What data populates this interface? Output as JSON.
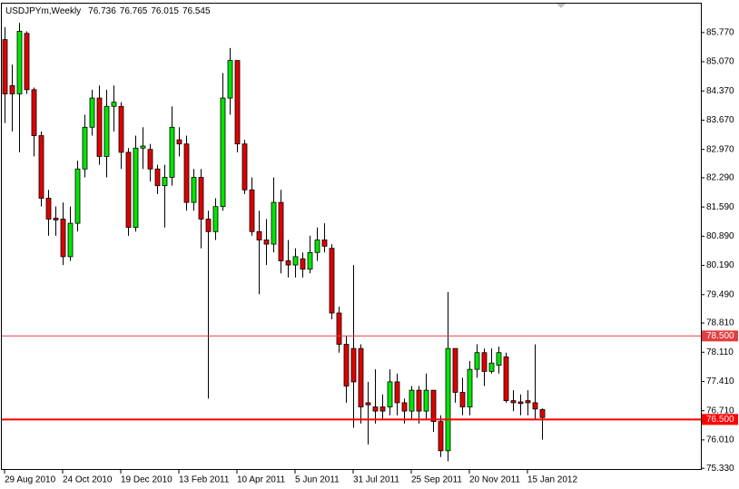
{
  "chart_data": {
    "type": "candlestick",
    "title": "USDJPYm,Weekly",
    "categories": [
      "29 Aug 2010",
      null,
      null,
      null,
      null,
      null,
      null,
      null,
      "24 Oct 2010",
      null,
      null,
      null,
      null,
      null,
      null,
      null,
      "19 Dec 2010",
      null,
      null,
      null,
      null,
      null,
      null,
      null,
      "13 Feb 2011",
      null,
      null,
      null,
      null,
      null,
      null,
      null,
      "10 Apr 2011",
      null,
      null,
      null,
      null,
      null,
      null,
      null,
      "5 Jun 2011",
      null,
      null,
      null,
      null,
      null,
      null,
      null,
      "31 Jul 2011",
      null,
      null,
      null,
      null,
      null,
      null,
      null,
      "25 Sep 2011",
      null,
      null,
      null,
      null,
      null,
      null,
      null,
      "20 Nov 2011",
      null,
      null,
      null,
      null,
      null,
      null,
      null,
      "15 Jan 2012",
      null,
      null
    ],
    "open": [
      85.6,
      84.5,
      84.3,
      85.75,
      84.4,
      83.3,
      81.8,
      81.32,
      81.3,
      80.4,
      81.2,
      82.5,
      83.5,
      84.2,
      82.8,
      84.0,
      84.0,
      82.9,
      81.1,
      83.0,
      82.97,
      82.5,
      82.1,
      82.3,
      83.2,
      83.1,
      81.7,
      82.3,
      81.3,
      81.0,
      81.6,
      84.2,
      85.1,
      83.1,
      82.0,
      81.0,
      80.8,
      80.7,
      81.7,
      80.3,
      80.2,
      80.35,
      80.1,
      80.5,
      80.8,
      80.6,
      79.05,
      78.3,
      78.2,
      78.2,
      76.9,
      76.8,
      76.8,
      76.8,
      77.4,
      76.9,
      76.7,
      77.2,
      76.7,
      77.2,
      76.45,
      75.75,
      78.2,
      77.15,
      76.8,
      77.7,
      78.1,
      77.65,
      77.8,
      78.0,
      76.95,
      76.92,
      76.95,
      76.9,
      76.736
    ],
    "high": [
      85.9,
      85.0,
      86.0,
      85.8,
      84.45,
      83.4,
      82.0,
      81.6,
      81.7,
      81.6,
      82.7,
      83.8,
      84.4,
      84.5,
      84.4,
      84.5,
      84.1,
      83.0,
      83.3,
      83.5,
      83.1,
      82.6,
      82.6,
      84.0,
      83.5,
      83.3,
      82.5,
      82.5,
      81.5,
      81.8,
      84.8,
      85.4,
      85.1,
      83.2,
      82.3,
      81.5,
      81.3,
      82.3,
      82.0,
      80.8,
      80.6,
      80.5,
      80.9,
      81.1,
      81.2,
      80.7,
      79.2,
      78.5,
      80.2,
      78.3,
      77.4,
      77.7,
      77.1,
      77.7,
      77.6,
      77.0,
      77.3,
      77.3,
      77.6,
      77.2,
      76.6,
      79.55,
      78.2,
      77.5,
      77.9,
      78.3,
      78.2,
      78.2,
      78.25,
      78.1,
      77.2,
      77.1,
      77.2,
      78.3,
      76.765
    ],
    "low": [
      83.6,
      83.4,
      82.9,
      84.3,
      82.8,
      81.6,
      80.9,
      80.9,
      80.2,
      80.3,
      81.0,
      82.3,
      83.3,
      82.6,
      82.3,
      83.4,
      82.5,
      80.9,
      81.0,
      82.5,
      82.2,
      81.9,
      81.1,
      82.1,
      82.8,
      81.5,
      81.5,
      80.6,
      77.0,
      80.8,
      81.5,
      83.8,
      82.9,
      81.9,
      80.9,
      79.5,
      80.2,
      80.5,
      80.0,
      79.9,
      79.9,
      79.9,
      80.0,
      80.3,
      80.5,
      78.9,
      78.1,
      76.9,
      76.3,
      76.4,
      75.9,
      76.4,
      76.5,
      76.6,
      76.6,
      76.4,
      76.5,
      76.4,
      76.5,
      76.2,
      75.6,
      75.5,
      76.9,
      76.6,
      76.6,
      77.5,
      77.3,
      77.6,
      77.6,
      76.9,
      76.7,
      76.6,
      76.6,
      76.5,
      76.015
    ],
    "close": [
      84.3,
      84.3,
      85.8,
      84.4,
      83.3,
      81.8,
      81.3,
      81.28,
      80.4,
      81.2,
      82.5,
      83.5,
      84.2,
      82.8,
      84.0,
      84.1,
      82.9,
      81.1,
      83.0,
      83.05,
      82.5,
      82.1,
      82.3,
      83.5,
      83.1,
      81.7,
      82.3,
      81.3,
      81.0,
      81.6,
      84.2,
      85.1,
      83.1,
      82.0,
      81.0,
      80.8,
      80.7,
      81.7,
      80.3,
      80.2,
      80.4,
      80.1,
      80.5,
      80.8,
      80.65,
      79.05,
      78.3,
      77.3,
      77.4,
      76.8,
      76.85,
      76.7,
      76.7,
      77.4,
      76.9,
      76.7,
      77.2,
      76.7,
      77.2,
      76.45,
      75.75,
      78.2,
      77.15,
      76.8,
      77.7,
      78.1,
      77.65,
      77.85,
      78.1,
      76.95,
      76.9,
      76.88,
      76.9,
      76.75,
      76.545
    ],
    "up_color": "#00e600",
    "down_color": "#e00000",
    "ylim": [
      75.29,
      86.44
    ],
    "yticks": [
      {
        "value": 85.77,
        "label": "85.770"
      },
      {
        "value": 85.07,
        "label": "85.070"
      },
      {
        "value": 84.37,
        "label": "84.370"
      },
      {
        "value": 83.67,
        "label": "83.670"
      },
      {
        "value": 82.97,
        "label": "82.970"
      },
      {
        "value": 82.29,
        "label": "82.290"
      },
      {
        "value": 81.59,
        "label": "81.590"
      },
      {
        "value": 80.89,
        "label": "80.890"
      },
      {
        "value": 80.19,
        "label": "80.190"
      },
      {
        "value": 79.49,
        "label": "79.490"
      },
      {
        "value": 78.81,
        "label": "78.810"
      },
      {
        "value": 78.11,
        "label": "78.110"
      },
      {
        "value": 77.41,
        "label": "77.410"
      },
      {
        "value": 76.71,
        "label": "76.710"
      },
      {
        "value": 76.01,
        "label": "76.010"
      },
      {
        "value": 75.33,
        "label": "75.330"
      }
    ],
    "hlines": [
      {
        "value": 78.5,
        "label": "78.500",
        "color": "#e04040",
        "width": 1
      },
      {
        "value": 76.5,
        "label": "76.500",
        "color": "#ff0000",
        "width": 2
      }
    ],
    "grid": false
  }
}
